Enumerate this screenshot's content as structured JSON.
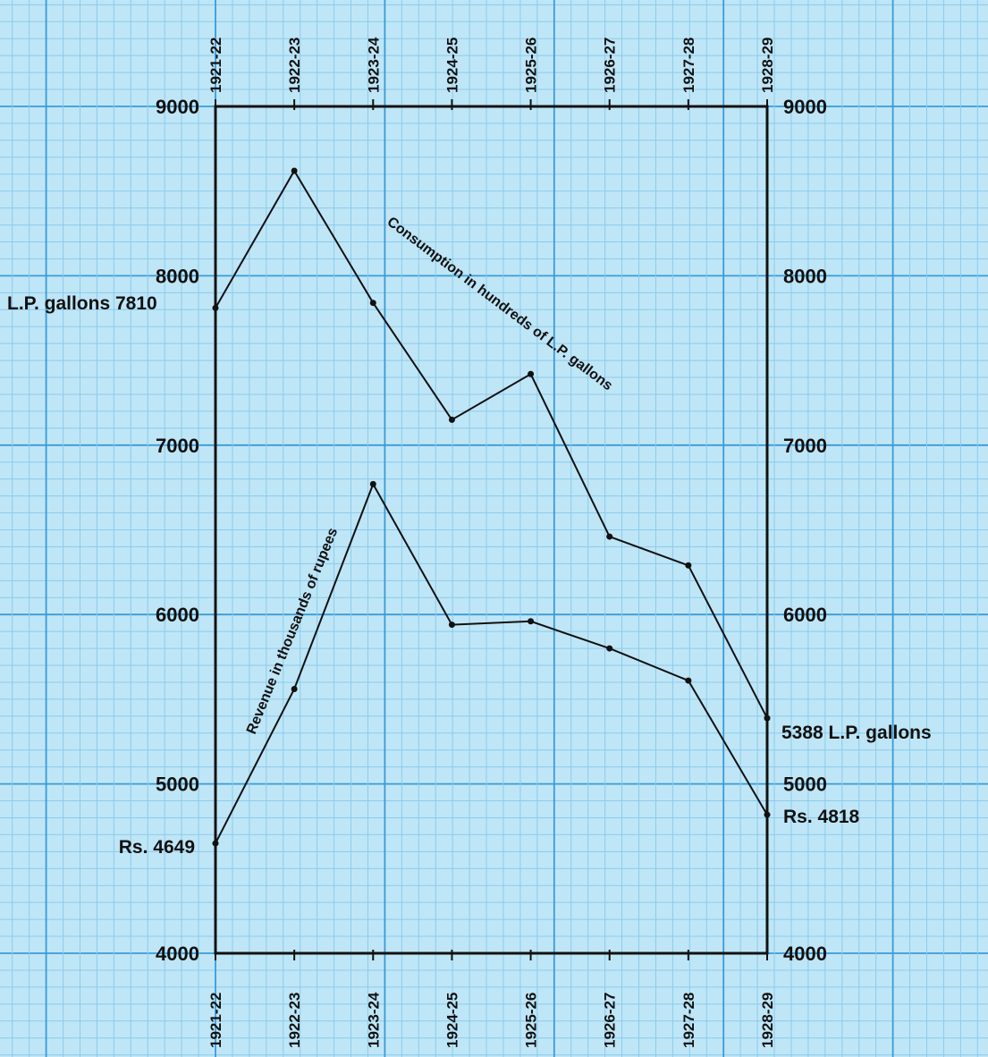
{
  "chart_data": {
    "type": "line",
    "categories": [
      "1921-22",
      "1922-23",
      "1923-24",
      "1924-25",
      "1925-26",
      "1926-27",
      "1927-28",
      "1928-29"
    ],
    "ylim": [
      4000,
      9000
    ],
    "yticks": [
      "4000",
      "5000",
      "6000",
      "7000",
      "8000",
      "9000"
    ],
    "grid": true,
    "series": [
      {
        "name": "Consumption in hundreds of L.P. gallons",
        "values": [
          7810,
          8620,
          7840,
          7150,
          7420,
          6460,
          6290,
          5388
        ]
      },
      {
        "name": "Revenue in thousands of rupees",
        "values": [
          4649,
          5560,
          6770,
          5940,
          5960,
          5800,
          5610,
          4818
        ]
      }
    ],
    "annotations": {
      "consumption_start": "L.P. gallons 7810",
      "revenue_start": "Rs. 4649",
      "consumption_end": "5388 L.P. gallons",
      "revenue_end": "Rs. 4818"
    }
  }
}
